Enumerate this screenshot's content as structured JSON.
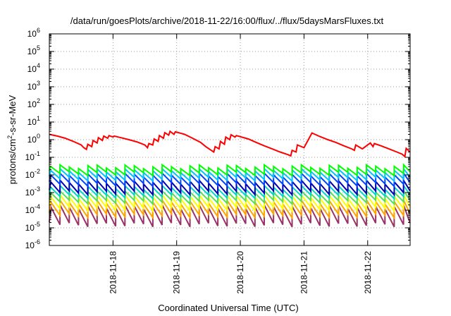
{
  "chart_data": {
    "type": "line",
    "title": "/data/run/goesPlots/archive/2018-11-22/16:00/flux/../flux/5daysMarsFluxes.txt",
    "xlabel": "Coordinated Universal Time (UTC)",
    "ylabel": {
      "base": "protons/cm",
      "sup": "2",
      "rest": "-s-sr-MeV"
    },
    "y_scale": "log",
    "ylim": [
      1e-06,
      1000000.0
    ],
    "y_ticks": [
      {
        "value": 1e-06,
        "base": "10",
        "exp": "-6"
      },
      {
        "value": 1e-05,
        "base": "10",
        "exp": "-5"
      },
      {
        "value": 0.0001,
        "base": "10",
        "exp": "-4"
      },
      {
        "value": 0.001,
        "base": "10",
        "exp": "-3"
      },
      {
        "value": 0.01,
        "base": "10",
        "exp": "-2"
      },
      {
        "value": 0.1,
        "base": "10",
        "exp": "-1"
      },
      {
        "value": 1,
        "base": "10",
        "exp": "0"
      },
      {
        "value": 10,
        "base": "10",
        "exp": "1"
      },
      {
        "value": 100,
        "base": "10",
        "exp": "2"
      },
      {
        "value": 1000,
        "base": "10",
        "exp": "3"
      },
      {
        "value": 10000,
        "base": "10",
        "exp": "4"
      },
      {
        "value": 100000,
        "base": "10",
        "exp": "5"
      },
      {
        "value": 1000000,
        "base": "10",
        "exp": "6"
      }
    ],
    "xlim": [
      "2018-11-17T00:00",
      "2018-11-22T16:00"
    ],
    "x_ticks": [
      "2018-11-18",
      "2018-11-19",
      "2018-11-20",
      "2018-11-21",
      "2018-11-22"
    ],
    "grid": true,
    "series": [
      {
        "color": "#ff0000",
        "x": [
          "2018-11-17T00:00",
          "2018-11-17T03:00",
          "2018-11-17T06:00",
          "2018-11-17T09:00",
          "2018-11-17T12:00",
          "2018-11-17T13:00",
          "2018-11-17T14:00",
          "2018-11-17T14:30",
          "2018-11-17T16:00",
          "2018-11-17T16:30",
          "2018-11-17T18:00",
          "2018-11-17T18:30",
          "2018-11-17T20:00",
          "2018-11-17T20:30",
          "2018-11-17T22:00",
          "2018-11-17T22:30",
          "2018-11-18T00:00",
          "2018-11-18T00:30",
          "2018-11-18T03:00",
          "2018-11-18T06:00",
          "2018-11-18T09:00",
          "2018-11-18T12:00",
          "2018-11-18T13:00",
          "2018-11-18T13:30",
          "2018-11-18T15:00",
          "2018-11-18T15:30",
          "2018-11-18T17:00",
          "2018-11-18T17:30",
          "2018-11-18T19:00",
          "2018-11-18T19:30",
          "2018-11-18T21:00",
          "2018-11-18T21:30",
          "2018-11-18T23:00",
          "2018-11-18T23:30",
          "2018-11-19T03:00",
          "2018-11-19T06:00",
          "2018-11-19T09:00",
          "2018-11-19T11:00",
          "2018-11-19T13:00",
          "2018-11-19T14:00",
          "2018-11-19T14:30",
          "2018-11-19T16:00",
          "2018-11-19T16:30",
          "2018-11-19T18:00",
          "2018-11-19T18:30",
          "2018-11-19T20:00",
          "2018-11-19T20:30",
          "2018-11-19T22:00",
          "2018-11-19T22:30",
          "2018-11-20T03:00",
          "2018-11-20T06:00",
          "2018-11-20T09:00",
          "2018-11-20T12:00",
          "2018-11-20T15:00",
          "2018-11-20T18:00",
          "2018-11-20T19:00",
          "2018-11-20T19:30",
          "2018-11-20T21:00",
          "2018-11-20T21:30",
          "2018-11-21T00:00",
          "2018-11-21T03:00",
          "2018-11-21T06:00",
          "2018-11-21T09:00",
          "2018-11-21T12:00",
          "2018-11-21T15:00",
          "2018-11-21T18:00",
          "2018-11-21T19:00",
          "2018-11-21T19:30",
          "2018-11-21T22:00",
          "2018-11-22T01:00",
          "2018-11-22T02:00",
          "2018-11-22T02:30",
          "2018-11-22T05:00",
          "2018-11-22T08:00",
          "2018-11-22T11:00",
          "2018-11-22T13:00",
          "2018-11-22T14:00",
          "2018-11-22T14:30",
          "2018-11-22T16:00"
        ],
        "values": [
          2.0,
          1.6,
          1.2,
          0.8,
          0.5,
          0.35,
          0.28,
          0.55,
          0.4,
          0.9,
          0.65,
          1.3,
          0.9,
          1.6,
          1.2,
          1.7,
          1.4,
          1.6,
          1.3,
          1.0,
          0.75,
          0.5,
          0.35,
          0.6,
          0.5,
          1.1,
          0.8,
          1.7,
          1.2,
          2.5,
          1.8,
          3.0,
          2.0,
          2.8,
          2.0,
          1.2,
          0.7,
          0.4,
          0.25,
          0.2,
          0.4,
          0.3,
          0.8,
          0.55,
          1.4,
          1.0,
          1.9,
          1.4,
          1.7,
          1.1,
          0.7,
          0.45,
          0.3,
          0.2,
          0.14,
          0.12,
          0.25,
          0.2,
          0.5,
          0.35,
          2.4,
          1.5,
          1.0,
          0.7,
          0.45,
          0.3,
          0.25,
          0.5,
          0.3,
          0.65,
          0.4,
          0.6,
          0.45,
          0.3,
          0.2,
          0.15,
          0.11,
          0.32,
          0.2
        ]
      }
    ],
    "sawtooth_bands": [
      {
        "color": "#00ff00",
        "peak": 0.03,
        "trough": 0.012
      },
      {
        "color": "#00c4ff",
        "peak": 0.018,
        "trough": 0.006
      },
      {
        "color": "#0044ff",
        "peak": 0.01,
        "trough": 0.003
      },
      {
        "color": "#0000b4",
        "peak": 0.004,
        "trough": 0.001
      },
      {
        "color": "#00d8c8",
        "peak": 0.002,
        "trough": 0.0006
      },
      {
        "color": "#55e055",
        "peak": 0.001,
        "trough": 0.0003
      },
      {
        "color": "#ffff00",
        "peak": 0.0006,
        "trough": 0.00012
      },
      {
        "color": "#ffa500",
        "peak": 0.0003,
        "trough": 5e-05
      },
      {
        "color": "#993366",
        "peak": 0.00016,
        "trough": 1.5e-05
      }
    ],
    "sawtooth_period_hours": 3.5
  }
}
